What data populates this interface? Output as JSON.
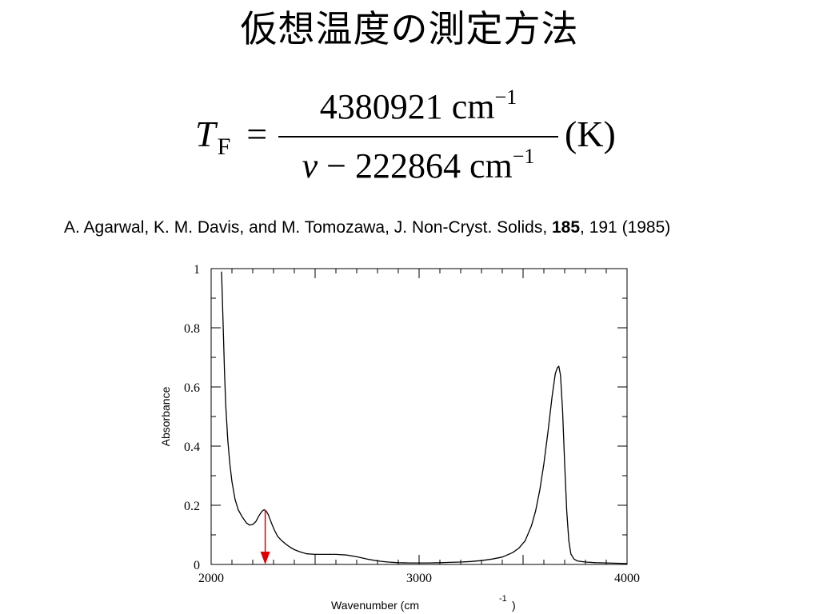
{
  "title": "仮想温度の測定方法",
  "formula": {
    "lhs_var": "T",
    "lhs_sub": "F",
    "equals": "=",
    "numerator": "4380921 cm",
    "numerator_exp": "−1",
    "denominator_var": "ν",
    "denominator_rest": " − 222864 cm",
    "denominator_exp": "−1",
    "unit": "(K)"
  },
  "citation": {
    "pre": "A. Agarwal, K. M. Davis, and M. Tomozawa, J. Non-Cryst. Solids, ",
    "bold": "185",
    "post": ", 191 (1985)"
  },
  "chart_data": {
    "type": "line",
    "title": "",
    "xlabel": "Wavenumber (cm",
    "xlabel_exp": "-1",
    "xlabel_close": ")",
    "ylabel": "Absorbance",
    "xlim": [
      2000,
      4000
    ],
    "ylim": [
      0,
      1
    ],
    "x_ticks": [
      2000,
      3000,
      4000
    ],
    "x_tick_labels": [
      "2000",
      "3000",
      "4000"
    ],
    "y_ticks": [
      0,
      0.2,
      0.4,
      0.6,
      0.8,
      1
    ],
    "y_tick_labels": [
      "0",
      "0.2",
      "0.4",
      "0.6",
      "0.8",
      "1"
    ],
    "grid": false,
    "marker_arrow": {
      "x": 2260,
      "from_y": 0.185,
      "to_y": 0,
      "color": "#e00000"
    },
    "series": [
      {
        "color": "#000000",
        "x": [
          2050,
          2053,
          2058,
          2064,
          2070,
          2080,
          2090,
          2100,
          2115,
          2130,
          2150,
          2170,
          2185,
          2200,
          2215,
          2230,
          2245,
          2255,
          2265,
          2275,
          2290,
          2305,
          2320,
          2340,
          2360,
          2380,
          2400,
          2430,
          2460,
          2500,
          2550,
          2600,
          2650,
          2700,
          2750,
          2800,
          2850,
          2900,
          2950,
          3000,
          3050,
          3100,
          3150,
          3200,
          3250,
          3300,
          3350,
          3400,
          3450,
          3480,
          3510,
          3540,
          3560,
          3580,
          3600,
          3620,
          3640,
          3655,
          3665,
          3672,
          3680,
          3690,
          3700,
          3710,
          3720,
          3730,
          3745,
          3760,
          3800,
          3850,
          3900,
          3950,
          4000
        ],
        "y": [
          0.99,
          0.92,
          0.8,
          0.66,
          0.54,
          0.42,
          0.34,
          0.28,
          0.22,
          0.185,
          0.16,
          0.14,
          0.133,
          0.135,
          0.145,
          0.165,
          0.18,
          0.185,
          0.18,
          0.168,
          0.14,
          0.115,
          0.095,
          0.08,
          0.068,
          0.058,
          0.05,
          0.042,
          0.036,
          0.034,
          0.034,
          0.034,
          0.032,
          0.026,
          0.018,
          0.012,
          0.008,
          0.006,
          0.005,
          0.005,
          0.005,
          0.006,
          0.007,
          0.008,
          0.01,
          0.013,
          0.018,
          0.025,
          0.04,
          0.055,
          0.08,
          0.13,
          0.18,
          0.25,
          0.34,
          0.45,
          0.57,
          0.645,
          0.665,
          0.67,
          0.64,
          0.52,
          0.34,
          0.18,
          0.08,
          0.035,
          0.018,
          0.012,
          0.008,
          0.006,
          0.005,
          0.004,
          0.003
        ]
      }
    ]
  }
}
